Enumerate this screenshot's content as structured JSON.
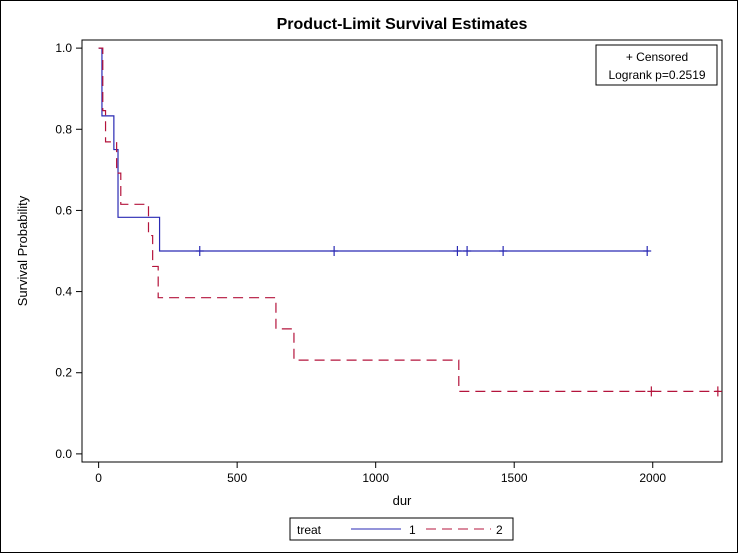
{
  "chart_data": {
    "type": "line",
    "chart_subtype": "kaplan-meier step plot",
    "title": "Product-Limit Survival Estimates",
    "xlabel": "dur",
    "ylabel": "Survival Probability",
    "xlim": [
      -60,
      2250
    ],
    "ylim": [
      -0.02,
      1.02
    ],
    "xticks": [
      0,
      500,
      1000,
      1500,
      2000
    ],
    "yticks": [
      0.0,
      0.2,
      0.4,
      0.6,
      0.8,
      1.0
    ],
    "xtick_labels": [
      "0",
      "500",
      "1000",
      "1500",
      "2000"
    ],
    "ytick_labels": [
      "0.0",
      "0.2",
      "0.4",
      "0.6",
      "0.8",
      "1.0"
    ],
    "grid": false,
    "legend": {
      "title": "treat",
      "placement": "bottom-center",
      "entries": [
        {
          "label": "1",
          "color": "#2a2ab4",
          "style": "solid"
        },
        {
          "label": "2",
          "color": "#b4143c",
          "style": "dashed"
        }
      ]
    },
    "inset": {
      "placement": "top-right",
      "line1": "+ Censored",
      "line2": "Logrank p=0.2519"
    },
    "series": [
      {
        "name": "1",
        "color": "#2a2ab4",
        "dash": "solid",
        "steps": [
          [
            0,
            1.0
          ],
          [
            12,
            0.833
          ],
          [
            55,
            0.75
          ],
          [
            70,
            0.583
          ],
          [
            220,
            0.5
          ]
        ],
        "end_x": 1985,
        "censored": [
          [
            365,
            0.5
          ],
          [
            850,
            0.5
          ],
          [
            1295,
            0.5
          ],
          [
            1330,
            0.5
          ],
          [
            1460,
            0.5
          ],
          [
            1980,
            0.5
          ]
        ]
      },
      {
        "name": "2",
        "color": "#b4143c",
        "dash": "dashed",
        "steps": [
          [
            0,
            1.0
          ],
          [
            15,
            0.846
          ],
          [
            25,
            0.769
          ],
          [
            65,
            0.692
          ],
          [
            80,
            0.615
          ],
          [
            180,
            0.538
          ],
          [
            195,
            0.462
          ],
          [
            215,
            0.385
          ],
          [
            640,
            0.308
          ],
          [
            705,
            0.231
          ],
          [
            1300,
            0.154
          ]
        ],
        "end_x": 2240,
        "censored": [
          [
            1995,
            0.154
          ],
          [
            2235,
            0.154
          ]
        ]
      }
    ]
  }
}
